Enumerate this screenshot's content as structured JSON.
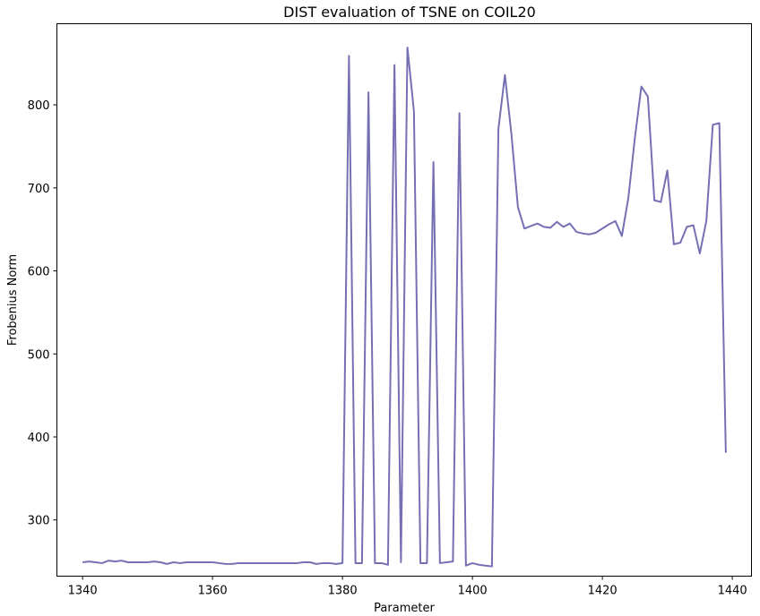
{
  "chart_data": {
    "type": "line",
    "title": "DIST evaluation of TSNE on COIL20",
    "xlabel": "Parameter",
    "ylabel": "Frobenius Norm",
    "xlim": [
      1336.05,
      1442.95
    ],
    "ylim": [
      232.3,
      897.7
    ],
    "xticks": [
      1340,
      1360,
      1380,
      1400,
      1420,
      1440
    ],
    "yticks": [
      300,
      400,
      500,
      600,
      700,
      800
    ],
    "grid": false,
    "line_color": "#7570b3",
    "series": [
      {
        "x": [
          1340,
          1341,
          1342,
          1343,
          1344,
          1345,
          1346,
          1347,
          1348,
          1349,
          1350,
          1351,
          1352,
          1353,
          1354,
          1355,
          1356,
          1357,
          1358,
          1359,
          1360,
          1361,
          1362,
          1363,
          1364,
          1365,
          1366,
          1367,
          1368,
          1369,
          1370,
          1371,
          1372,
          1373,
          1374,
          1375,
          1376,
          1377,
          1378,
          1379,
          1380,
          1381,
          1382,
          1383,
          1384,
          1385,
          1386,
          1387,
          1388,
          1389,
          1390,
          1391,
          1392,
          1393,
          1394,
          1395,
          1396,
          1397,
          1398,
          1399,
          1400,
          1401,
          1402,
          1403,
          1404,
          1405,
          1406,
          1407,
          1408,
          1409,
          1410,
          1411,
          1412,
          1413,
          1414,
          1415,
          1416,
          1417,
          1418,
          1419,
          1420,
          1421,
          1422,
          1423,
          1424,
          1425,
          1426,
          1427,
          1428,
          1429,
          1430,
          1431,
          1432,
          1433,
          1434,
          1435,
          1436,
          1437,
          1438,
          1439
        ],
        "values": [
          249,
          250,
          249,
          248,
          251,
          250,
          251,
          249,
          249,
          249,
          249,
          250,
          249,
          247,
          249,
          248,
          249,
          249,
          249,
          249,
          249,
          248,
          247,
          247,
          248,
          248,
          248,
          248,
          248,
          248,
          248,
          248,
          248,
          248,
          249,
          249,
          247,
          248,
          248,
          247,
          248,
          859,
          248,
          248,
          815,
          248,
          248,
          246,
          848,
          249,
          869,
          792,
          248,
          248,
          731,
          248,
          249,
          250,
          790,
          245,
          248,
          246,
          245,
          244,
          771,
          836,
          765,
          677,
          651,
          654,
          657,
          653,
          652,
          659,
          653,
          657,
          647,
          645,
          644,
          646,
          651,
          656,
          660,
          642,
          688,
          760,
          822,
          810,
          685,
          683,
          721,
          632,
          634,
          653,
          655,
          621,
          660,
          776,
          778,
          381
        ]
      }
    ]
  }
}
